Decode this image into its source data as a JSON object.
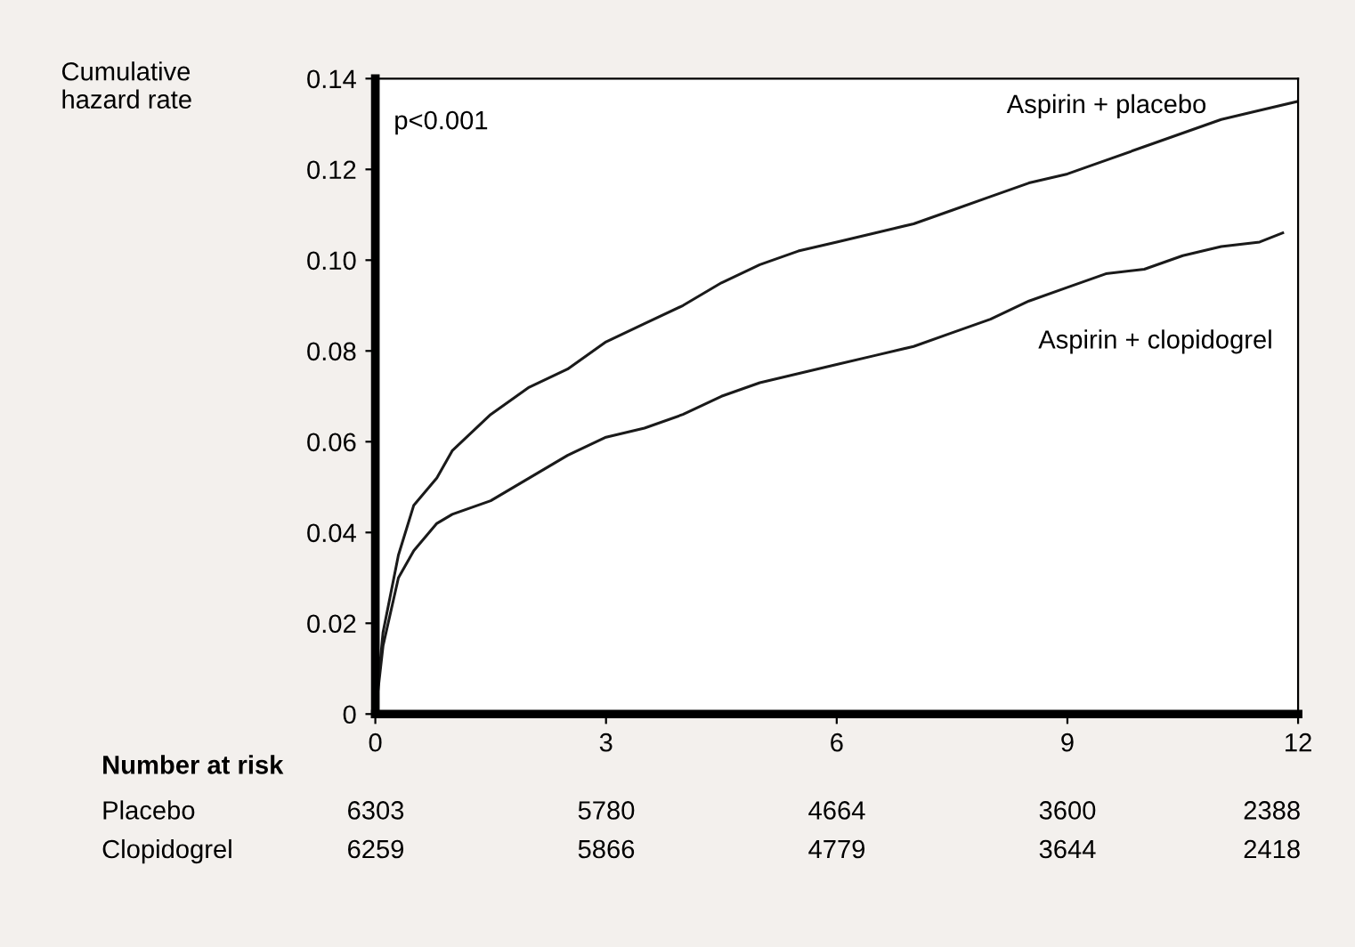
{
  "chart_data": {
    "type": "line",
    "ylabel": "Cumulative\nhazard rate",
    "xlim": [
      0,
      12
    ],
    "xticks": [
      0,
      3,
      6,
      9,
      12
    ],
    "ylim": [
      0,
      0.14
    ],
    "yticks": [
      0,
      0.02,
      0.04,
      0.06,
      0.08,
      {
        "value": 0.1,
        "label": "0.10"
      },
      0.12,
      0.14
    ],
    "grid": false,
    "legend": false,
    "marker": "none",
    "line_style": "solid",
    "series": [
      {
        "name": "Aspirin + placebo",
        "color": "#1a1a1a",
        "x": [
          0,
          0.1,
          0.3,
          0.5,
          0.8,
          1,
          1.5,
          2,
          2.5,
          3,
          3.5,
          4,
          4.5,
          5,
          5.5,
          6,
          6.5,
          7,
          7.5,
          8,
          8.5,
          9,
          9.5,
          10,
          10.5,
          11,
          11.5,
          12
        ],
        "values": [
          0,
          0.018,
          0.035,
          0.046,
          0.052,
          0.058,
          0.066,
          0.072,
          0.076,
          0.082,
          0.086,
          0.09,
          0.095,
          0.099,
          0.102,
          0.104,
          0.106,
          0.108,
          0.111,
          0.114,
          0.117,
          0.119,
          0.122,
          0.125,
          0.128,
          0.131,
          0.133,
          0.135
        ]
      },
      {
        "name": "Aspirin + clopidogrel",
        "color": "#1a1a1a",
        "x": [
          0,
          0.1,
          0.3,
          0.5,
          0.8,
          1,
          1.5,
          2,
          2.5,
          3,
          3.5,
          4,
          4.5,
          5,
          5.5,
          6,
          6.5,
          7,
          7.5,
          8,
          8.5,
          9,
          9.5,
          10,
          10.5,
          11,
          11.5,
          11.8
        ],
        "values": [
          0,
          0.015,
          0.03,
          0.036,
          0.042,
          0.044,
          0.047,
          0.052,
          0.057,
          0.061,
          0.063,
          0.066,
          0.07,
          0.073,
          0.075,
          0.077,
          0.079,
          0.081,
          0.084,
          0.087,
          0.091,
          0.094,
          0.097,
          0.098,
          0.101,
          0.103,
          0.104,
          0.106
        ]
      }
    ],
    "annotations": [
      "p<0.001",
      "Number at risk",
      "Placebo",
      "6303",
      "5780",
      "4664",
      "3600",
      "2388",
      "Clopidogrel",
      "6259",
      "5866",
      "4779",
      "3644",
      "2418"
    ]
  }
}
